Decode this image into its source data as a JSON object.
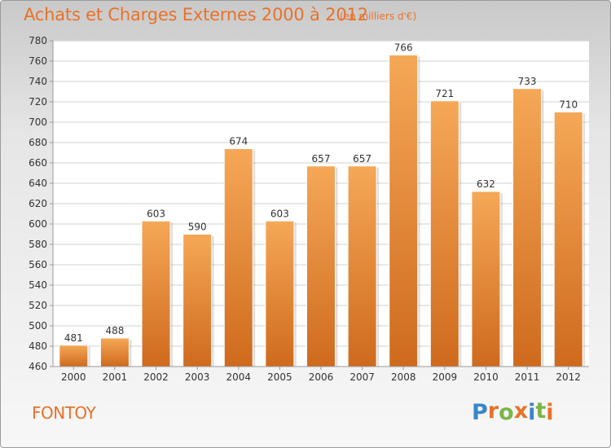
{
  "header": {
    "title": "Achats et Charges Externes 2000 à 2012",
    "subtitle": "(en milliers d'€)"
  },
  "footer": {
    "place": "FONTOY",
    "logo_text": "Proxiti",
    "logo_colors": [
      "#3a86c9",
      "#e8722a",
      "#7ab648",
      "#e8722a",
      "#3a86c9",
      "#7ab648",
      "#e8722a"
    ]
  },
  "colors": {
    "accent": "#e8722a",
    "bar_light": "#f5a857",
    "bar_dark": "#cf6a1d",
    "grid": "#d2d2d2",
    "text": "#333333"
  },
  "chart_data": {
    "type": "bar",
    "categories": [
      "2000",
      "2001",
      "2002",
      "2003",
      "2004",
      "2005",
      "2006",
      "2007",
      "2008",
      "2009",
      "2010",
      "2011",
      "2012"
    ],
    "values": [
      481,
      488,
      603,
      590,
      674,
      603,
      657,
      657,
      766,
      721,
      632,
      733,
      710
    ],
    "data_labels": [
      "481",
      "488",
      "603",
      "590",
      "674",
      "603",
      "657",
      "657",
      "766",
      "721",
      "632",
      "733",
      "710"
    ],
    "ylim": [
      460,
      780
    ],
    "yticks": [
      460,
      480,
      500,
      520,
      540,
      560,
      580,
      600,
      620,
      640,
      660,
      680,
      700,
      720,
      740,
      760,
      780
    ],
    "grid": true,
    "legend": "none"
  }
}
